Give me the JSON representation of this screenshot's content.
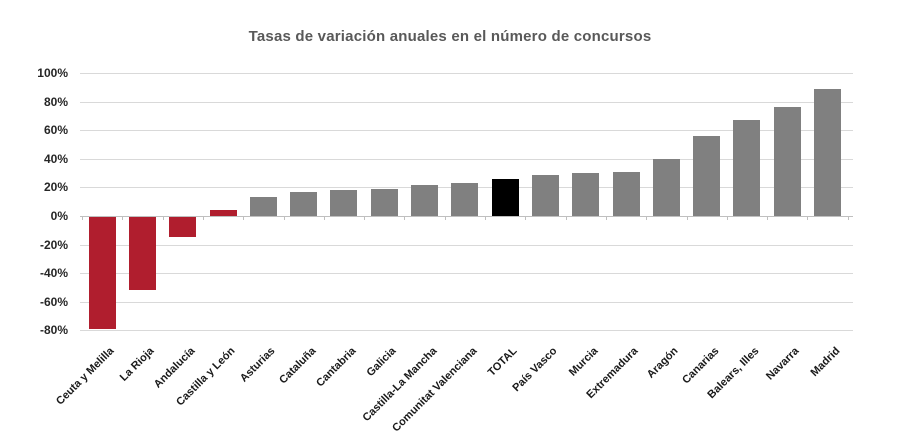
{
  "chart_data": {
    "type": "bar",
    "title": "Tasas de variación anuales en el número de concursos",
    "categories": [
      "Ceuta y Melilla",
      "La Rioja",
      "Andalucía",
      "Castilla y León",
      "Asturias",
      "Cataluña",
      "Cantabria",
      "Galicia",
      "Castilla-La Mancha",
      "Comunitat Valenciana",
      "TOTAL",
      "País Vasco",
      "Murcia",
      "Extremadura",
      "Aragón",
      "Canarias",
      "Balears, Illes",
      "Navarra",
      "Madrid"
    ],
    "values": [
      -78,
      -51,
      -14,
      4,
      13,
      17,
      18,
      19,
      22,
      23,
      26,
      29,
      30,
      31,
      40,
      56,
      67,
      76,
      89
    ],
    "unit": "%",
    "xlabel": "",
    "ylabel": "",
    "ylim": [
      -80,
      100
    ],
    "y_ticks": [
      "100%",
      "80%",
      "60%",
      "40%",
      "20%",
      "0%",
      "-20%",
      "-40%",
      "-60%",
      "-80%"
    ],
    "grid": "horizontal",
    "legend": "none",
    "bar_colors": [
      "red",
      "red",
      "red",
      "red",
      "gray",
      "gray",
      "gray",
      "gray",
      "gray",
      "gray",
      "black",
      "gray",
      "gray",
      "gray",
      "gray",
      "gray",
      "gray",
      "gray",
      "gray"
    ],
    "colors": {
      "red": "#B01E2E",
      "gray": "#808080",
      "black": "#000000",
      "gridline": "#D9D9D9",
      "axis": "#BFBFBF",
      "title": "#595959",
      "tick_label": "#262626",
      "xlabel_text": "#1A1A1A"
    }
  }
}
